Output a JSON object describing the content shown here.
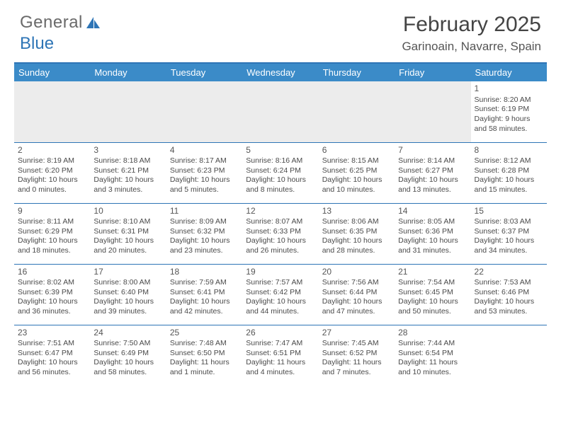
{
  "logo": {
    "text_gray": "General",
    "text_blue": "Blue"
  },
  "title": "February 2025",
  "location": "Garinoain, Navarre, Spain",
  "colors": {
    "header_bg": "#3b8bc8",
    "header_text": "#ffffff",
    "rule": "#2e75b6",
    "body_text": "#4a4a4a",
    "empty_bg": "#ececec",
    "logo_gray": "#6a6a6a",
    "logo_blue": "#2e75b6"
  },
  "weekdays": [
    "Sunday",
    "Monday",
    "Tuesday",
    "Wednesday",
    "Thursday",
    "Friday",
    "Saturday"
  ],
  "weeks": [
    [
      null,
      null,
      null,
      null,
      null,
      null,
      {
        "n": "1",
        "sr": "Sunrise: 8:20 AM",
        "ss": "Sunset: 6:19 PM",
        "dl": "Daylight: 9 hours and 58 minutes."
      }
    ],
    [
      {
        "n": "2",
        "sr": "Sunrise: 8:19 AM",
        "ss": "Sunset: 6:20 PM",
        "dl": "Daylight: 10 hours and 0 minutes."
      },
      {
        "n": "3",
        "sr": "Sunrise: 8:18 AM",
        "ss": "Sunset: 6:21 PM",
        "dl": "Daylight: 10 hours and 3 minutes."
      },
      {
        "n": "4",
        "sr": "Sunrise: 8:17 AM",
        "ss": "Sunset: 6:23 PM",
        "dl": "Daylight: 10 hours and 5 minutes."
      },
      {
        "n": "5",
        "sr": "Sunrise: 8:16 AM",
        "ss": "Sunset: 6:24 PM",
        "dl": "Daylight: 10 hours and 8 minutes."
      },
      {
        "n": "6",
        "sr": "Sunrise: 8:15 AM",
        "ss": "Sunset: 6:25 PM",
        "dl": "Daylight: 10 hours and 10 minutes."
      },
      {
        "n": "7",
        "sr": "Sunrise: 8:14 AM",
        "ss": "Sunset: 6:27 PM",
        "dl": "Daylight: 10 hours and 13 minutes."
      },
      {
        "n": "8",
        "sr": "Sunrise: 8:12 AM",
        "ss": "Sunset: 6:28 PM",
        "dl": "Daylight: 10 hours and 15 minutes."
      }
    ],
    [
      {
        "n": "9",
        "sr": "Sunrise: 8:11 AM",
        "ss": "Sunset: 6:29 PM",
        "dl": "Daylight: 10 hours and 18 minutes."
      },
      {
        "n": "10",
        "sr": "Sunrise: 8:10 AM",
        "ss": "Sunset: 6:31 PM",
        "dl": "Daylight: 10 hours and 20 minutes."
      },
      {
        "n": "11",
        "sr": "Sunrise: 8:09 AM",
        "ss": "Sunset: 6:32 PM",
        "dl": "Daylight: 10 hours and 23 minutes."
      },
      {
        "n": "12",
        "sr": "Sunrise: 8:07 AM",
        "ss": "Sunset: 6:33 PM",
        "dl": "Daylight: 10 hours and 26 minutes."
      },
      {
        "n": "13",
        "sr": "Sunrise: 8:06 AM",
        "ss": "Sunset: 6:35 PM",
        "dl": "Daylight: 10 hours and 28 minutes."
      },
      {
        "n": "14",
        "sr": "Sunrise: 8:05 AM",
        "ss": "Sunset: 6:36 PM",
        "dl": "Daylight: 10 hours and 31 minutes."
      },
      {
        "n": "15",
        "sr": "Sunrise: 8:03 AM",
        "ss": "Sunset: 6:37 PM",
        "dl": "Daylight: 10 hours and 34 minutes."
      }
    ],
    [
      {
        "n": "16",
        "sr": "Sunrise: 8:02 AM",
        "ss": "Sunset: 6:39 PM",
        "dl": "Daylight: 10 hours and 36 minutes."
      },
      {
        "n": "17",
        "sr": "Sunrise: 8:00 AM",
        "ss": "Sunset: 6:40 PM",
        "dl": "Daylight: 10 hours and 39 minutes."
      },
      {
        "n": "18",
        "sr": "Sunrise: 7:59 AM",
        "ss": "Sunset: 6:41 PM",
        "dl": "Daylight: 10 hours and 42 minutes."
      },
      {
        "n": "19",
        "sr": "Sunrise: 7:57 AM",
        "ss": "Sunset: 6:42 PM",
        "dl": "Daylight: 10 hours and 44 minutes."
      },
      {
        "n": "20",
        "sr": "Sunrise: 7:56 AM",
        "ss": "Sunset: 6:44 PM",
        "dl": "Daylight: 10 hours and 47 minutes."
      },
      {
        "n": "21",
        "sr": "Sunrise: 7:54 AM",
        "ss": "Sunset: 6:45 PM",
        "dl": "Daylight: 10 hours and 50 minutes."
      },
      {
        "n": "22",
        "sr": "Sunrise: 7:53 AM",
        "ss": "Sunset: 6:46 PM",
        "dl": "Daylight: 10 hours and 53 minutes."
      }
    ],
    [
      {
        "n": "23",
        "sr": "Sunrise: 7:51 AM",
        "ss": "Sunset: 6:47 PM",
        "dl": "Daylight: 10 hours and 56 minutes."
      },
      {
        "n": "24",
        "sr": "Sunrise: 7:50 AM",
        "ss": "Sunset: 6:49 PM",
        "dl": "Daylight: 10 hours and 58 minutes."
      },
      {
        "n": "25",
        "sr": "Sunrise: 7:48 AM",
        "ss": "Sunset: 6:50 PM",
        "dl": "Daylight: 11 hours and 1 minute."
      },
      {
        "n": "26",
        "sr": "Sunrise: 7:47 AM",
        "ss": "Sunset: 6:51 PM",
        "dl": "Daylight: 11 hours and 4 minutes."
      },
      {
        "n": "27",
        "sr": "Sunrise: 7:45 AM",
        "ss": "Sunset: 6:52 PM",
        "dl": "Daylight: 11 hours and 7 minutes."
      },
      {
        "n": "28",
        "sr": "Sunrise: 7:44 AM",
        "ss": "Sunset: 6:54 PM",
        "dl": "Daylight: 11 hours and 10 minutes."
      },
      null
    ]
  ]
}
